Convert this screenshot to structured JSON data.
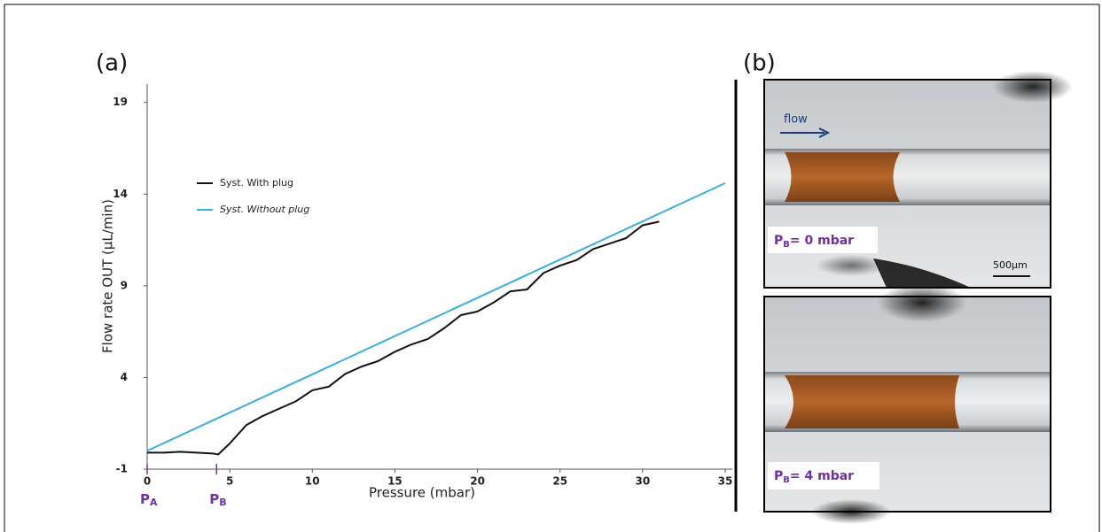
{
  "chart_data": {
    "type": "line",
    "xlabel": "Pressure (mbar)",
    "ylabel": "Flow rate OUT (µL/min)",
    "xlim": [
      0,
      35
    ],
    "ylim": [
      -1,
      20
    ],
    "xticks": [
      0,
      5,
      10,
      15,
      20,
      25,
      30,
      35
    ],
    "yticks": [
      -1,
      4,
      9,
      14,
      19
    ],
    "grid": false,
    "legend": "upper left",
    "series": [
      {
        "name": "Syst. With plug",
        "color": "#111111",
        "font_style": "normal",
        "x": [
          0,
          1,
          2,
          3,
          4,
          4.3,
          5,
          6,
          7,
          8,
          9,
          10,
          11,
          12,
          13,
          14,
          15,
          16,
          17,
          18,
          19,
          20,
          21,
          22,
          23,
          24,
          25,
          26,
          27,
          28,
          29,
          30,
          31
        ],
        "values": [
          -0.1,
          -0.1,
          -0.05,
          -0.1,
          -0.15,
          -0.2,
          0.4,
          1.4,
          1.9,
          2.3,
          2.7,
          3.3,
          3.5,
          4.2,
          4.6,
          4.9,
          5.4,
          5.8,
          6.1,
          6.7,
          7.4,
          7.6,
          8.1,
          8.7,
          8.8,
          9.7,
          10.1,
          10.4,
          11.0,
          11.3,
          11.6,
          12.3,
          12.5
        ]
      },
      {
        "name": "Syst. Without plug",
        "color": "#3aaedc",
        "font_style": "italic",
        "x": [
          0,
          35
        ],
        "values": [
          0,
          14.6
        ]
      }
    ],
    "annotations": [
      {
        "label": "P",
        "subscript": "A",
        "x": 0
      },
      {
        "label": "P",
        "subscript": "B",
        "x": 4.2
      }
    ]
  },
  "panels": [
    "(a)",
    "(b)"
  ],
  "photos": [
    {
      "flow": "flow",
      "label": "P",
      "subscript": "B",
      "rest": "= 0 mbar",
      "scale_bar": "500µm"
    },
    {
      "label": "P",
      "subscript": "B",
      "rest": "= 4 mbar"
    }
  ]
}
